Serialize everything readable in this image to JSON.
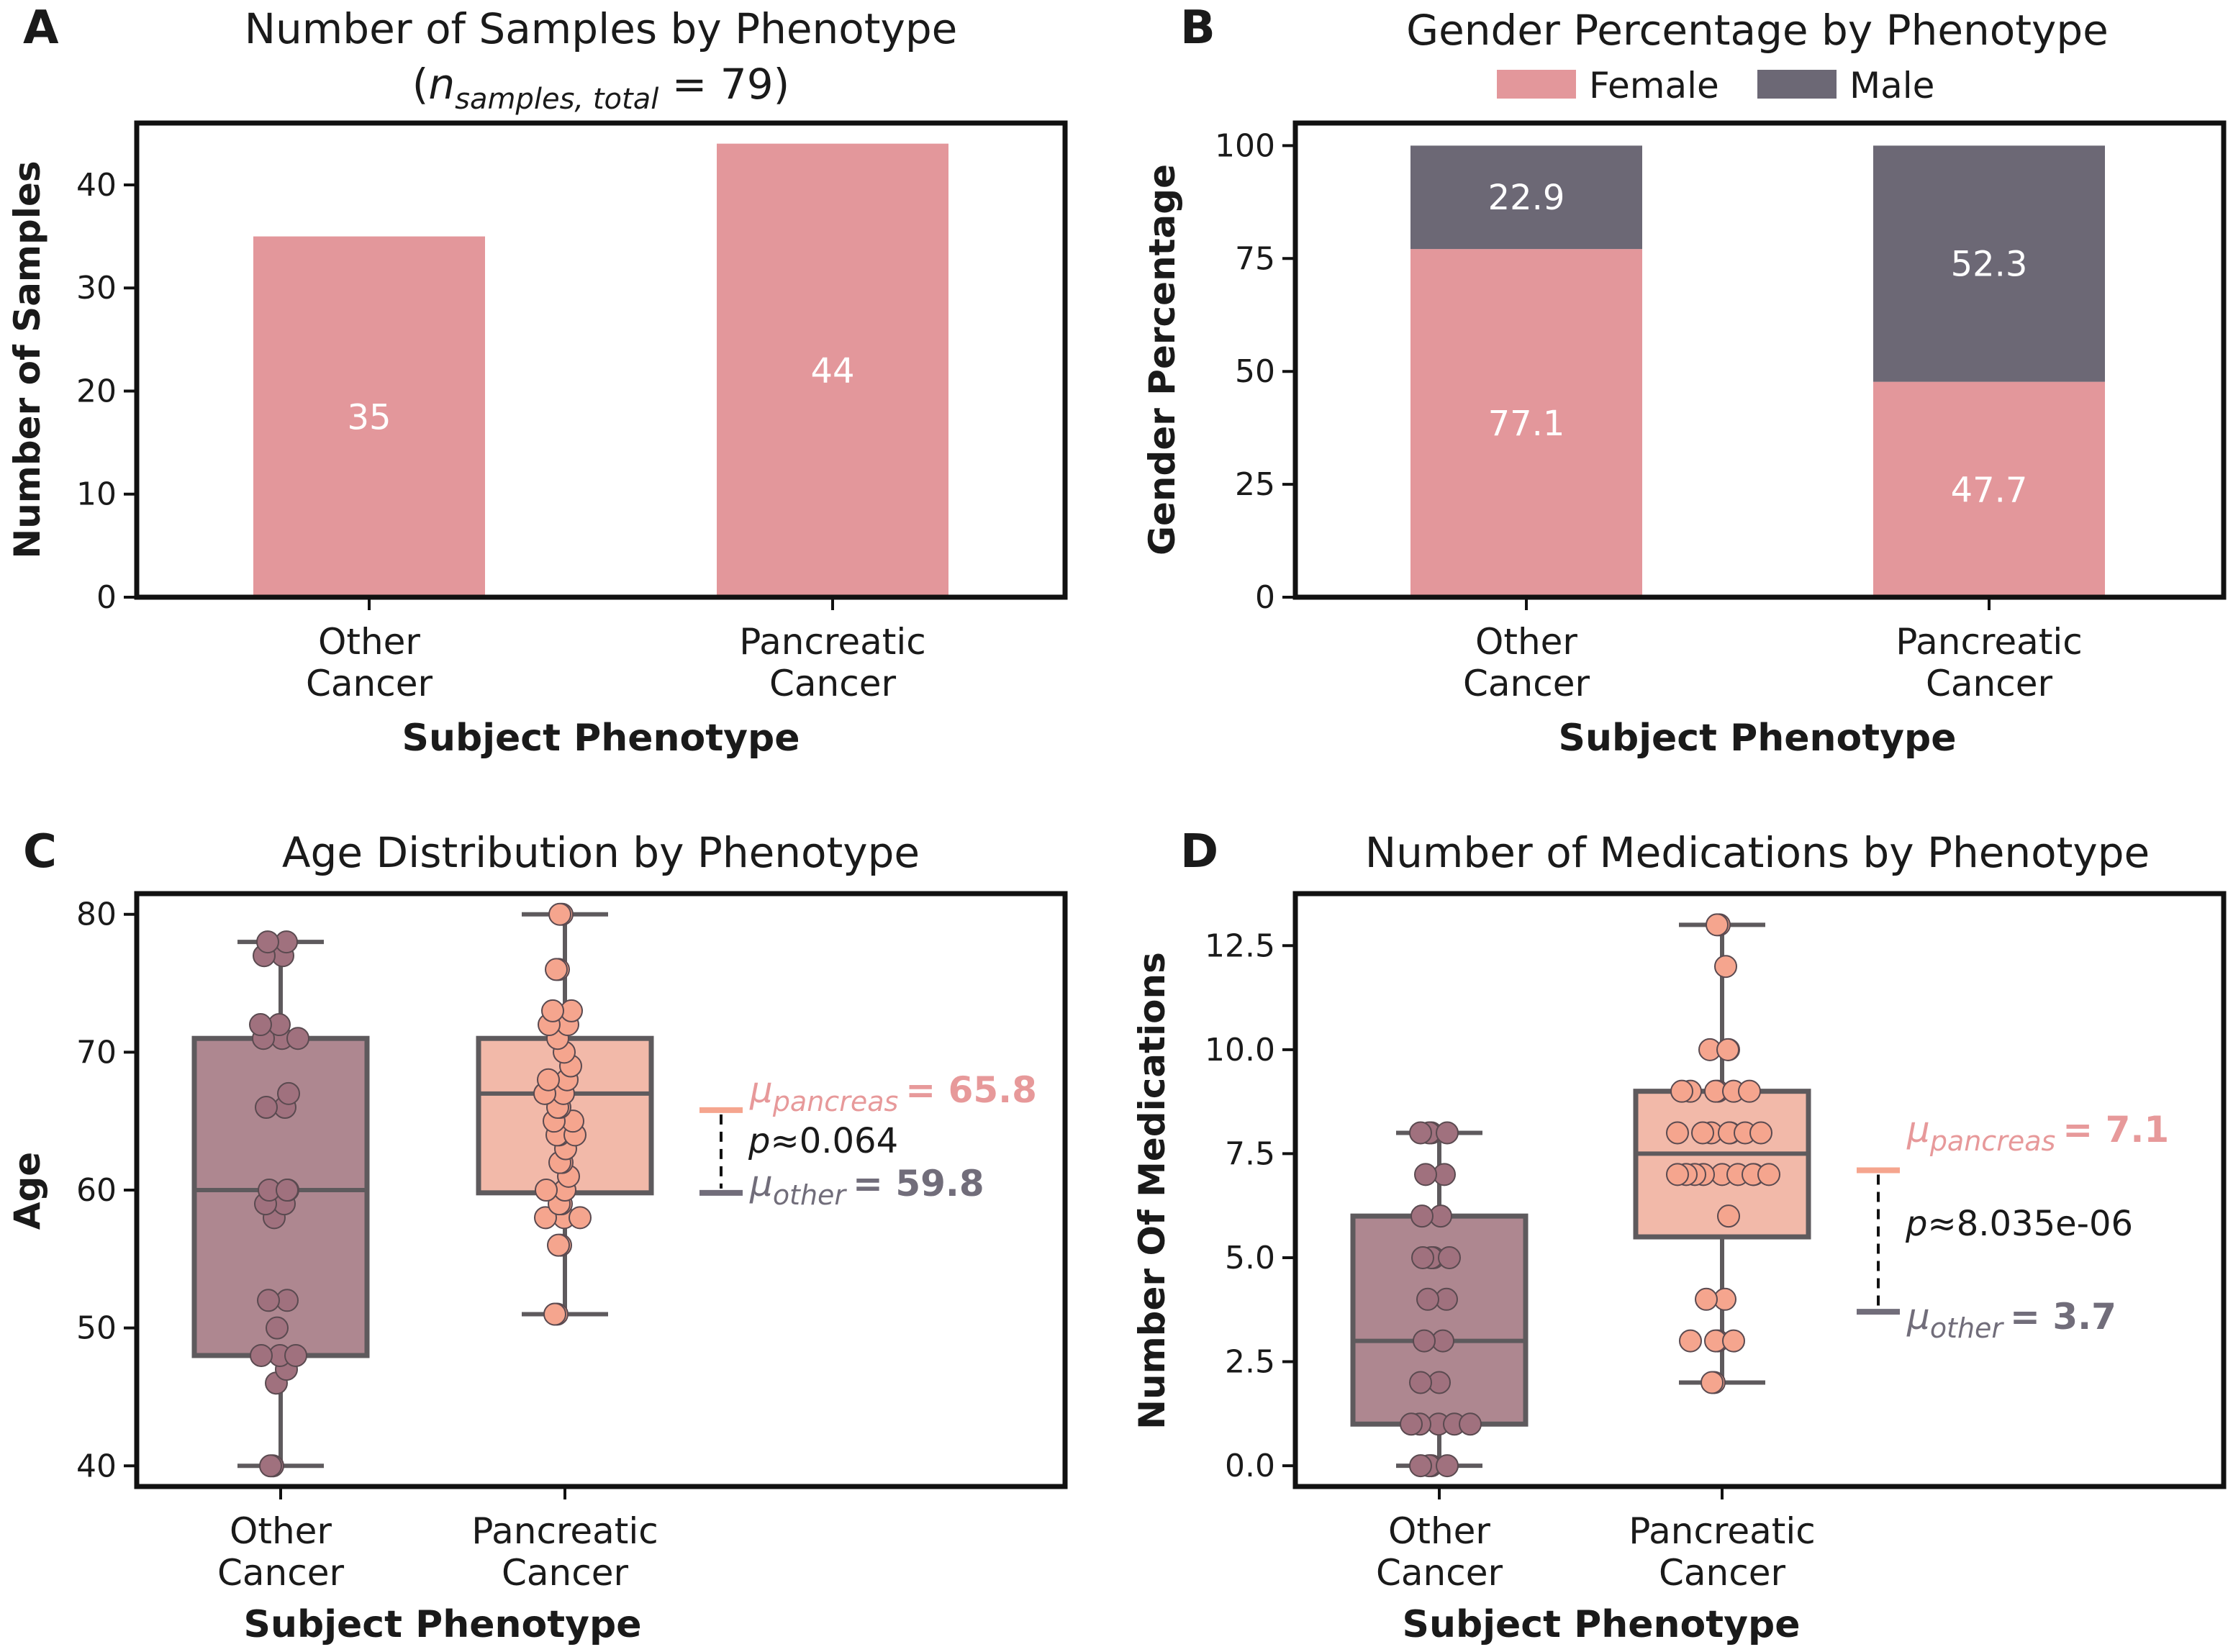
{
  "colors": {
    "female": "#e3979b",
    "male": "#6c6875",
    "other_box": "#ae8790",
    "other_point": "#a0717e",
    "pancreas_box": "#f2b9a9",
    "pancreas_point": "#f5a58e",
    "box_edge": "#5e5a5d",
    "mu_pancreas": "#e7999a",
    "mu_other": "#716d7a"
  },
  "panels": {
    "A": {
      "letter": "A",
      "title": "Number of Samples by Phenotype",
      "subtitle_prefix": "(",
      "subtitle_n": "n",
      "subtitle_sub": "samples, total",
      "subtitle_rest": " = 79)",
      "xlabel": "Subject Phenotype",
      "ylabel": "Number of Samples"
    },
    "B": {
      "letter": "B",
      "title": "Gender Percentage by Phenotype",
      "xlabel": "Subject Phenotype",
      "ylabel": "Gender Percentage",
      "legend": [
        "Female",
        "Male"
      ]
    },
    "C": {
      "letter": "C",
      "title": "Age Distribution by Phenotype",
      "xlabel": "Subject Phenotype",
      "ylabel": "Age",
      "mu_pancreas_sub": "pancreas",
      "mu_pancreas_val": "= 65.8",
      "mu_other_sub": "other",
      "mu_other_val": "= 59.8",
      "p_text": "≈0.064"
    },
    "D": {
      "letter": "D",
      "title": "Number of Medications by Phenotype",
      "xlabel": "Subject Phenotype",
      "ylabel": "Number Of Medications",
      "mu_pancreas_sub": "pancreas",
      "mu_pancreas_val": "= 7.1",
      "mu_other_sub": "other",
      "mu_other_val": "= 3.7",
      "p_text": "≈8.035e-06"
    }
  },
  "chart_data": [
    {
      "type": "bar",
      "title": "Number of Samples by Phenotype (n_samples,total = 79)",
      "categories": [
        [
          "Other",
          "Cancer"
        ],
        [
          "Pancreatic",
          "Cancer"
        ]
      ],
      "values": [
        35,
        44
      ],
      "value_labels": [
        "35",
        "44"
      ],
      "xlabel": "Subject Phenotype",
      "ylabel": "Number of Samples",
      "ylim": [
        0,
        46
      ],
      "yticks": [
        0,
        10,
        20,
        30,
        40
      ],
      "ytick_labels": [
        "0",
        "10",
        "20",
        "30",
        "40"
      ]
    },
    {
      "type": "bar",
      "stacked": true,
      "title": "Gender Percentage by Phenotype",
      "categories": [
        [
          "Other",
          "Cancer"
        ],
        [
          "Pancreatic",
          "Cancer"
        ]
      ],
      "series": [
        {
          "name": "Female",
          "values": [
            77.1,
            47.7
          ],
          "labels": [
            "77.1",
            "47.7"
          ]
        },
        {
          "name": "Male",
          "values": [
            22.9,
            52.3
          ],
          "labels": [
            "22.9",
            "52.3"
          ]
        }
      ],
      "legend_position": "top-center",
      "xlabel": "Subject Phenotype",
      "ylabel": "Gender Percentage",
      "ylim": [
        0,
        105
      ],
      "yticks": [
        0,
        25,
        50,
        75,
        100
      ],
      "ytick_labels": [
        "0",
        "25",
        "50",
        "75",
        "100"
      ]
    },
    {
      "type": "box",
      "title": "Age Distribution by Phenotype",
      "categories": [
        [
          "Other",
          "Cancer"
        ],
        [
          "Pancreatic",
          "Cancer"
        ]
      ],
      "boxes": [
        {
          "name": "Other Cancer",
          "whisker_low": 40,
          "q1": 48,
          "median": 60,
          "q3": 71,
          "whisker_high": 78,
          "points": [
            40,
            40,
            46,
            47,
            48,
            48,
            48,
            50,
            52,
            52,
            58,
            59,
            59,
            60,
            60,
            60,
            66,
            66,
            67,
            71,
            71,
            71,
            72,
            72,
            77,
            77,
            78,
            78
          ]
        },
        {
          "name": "Pancreatic Cancer",
          "whisker_low": 51,
          "q1": 59.8,
          "median": 67,
          "q3": 71,
          "whisker_high": 80,
          "points": [
            51,
            51,
            56,
            56,
            58,
            58,
            58,
            59,
            59,
            60,
            60,
            61,
            62,
            62,
            63,
            64,
            64,
            64,
            65,
            65,
            66,
            66,
            67,
            67,
            68,
            68,
            69,
            70,
            71,
            72,
            72,
            73,
            73,
            76,
            76,
            80,
            80
          ]
        }
      ],
      "annotation": {
        "mu_pancreas": 65.8,
        "mu_other": 59.8,
        "p": 0.064
      },
      "xlabel": "Subject Phenotype",
      "ylabel": "Age",
      "ylim": [
        38.5,
        81.5
      ],
      "yticks": [
        40,
        50,
        60,
        70,
        80
      ],
      "ytick_labels": [
        "40",
        "50",
        "60",
        "70",
        "80"
      ]
    },
    {
      "type": "box",
      "title": "Number of Medications by Phenotype",
      "categories": [
        [
          "Other",
          "Cancer"
        ],
        [
          "Pancreatic",
          "Cancer"
        ]
      ],
      "boxes": [
        {
          "name": "Other Cancer",
          "whisker_low": 0,
          "q1": 1,
          "median": 3,
          "q3": 6,
          "whisker_high": 8,
          "points": [
            0,
            0,
            0,
            0,
            1,
            1,
            1,
            1,
            1,
            2,
            2,
            3,
            3,
            4,
            4,
            5,
            5,
            5,
            5,
            6,
            6,
            7,
            7,
            8,
            8,
            8,
            8
          ]
        },
        {
          "name": "Pancreatic Cancer",
          "whisker_low": 2,
          "q1": 5.5,
          "median": 7.5,
          "q3": 9,
          "whisker_high": 13,
          "points": [
            2,
            2,
            3,
            3,
            3,
            3,
            4,
            4,
            6,
            7,
            7,
            7,
            7,
            7,
            7,
            7,
            7,
            7,
            8,
            8,
            8,
            8,
            8,
            8,
            8,
            9,
            9,
            9,
            9,
            9,
            9,
            10,
            10,
            10,
            12,
            13,
            13
          ]
        }
      ],
      "annotation": {
        "mu_pancreas": 7.1,
        "mu_other": 3.7,
        "p": 8.035e-06
      },
      "xlabel": "Subject Phenotype",
      "ylabel": "Number Of Medications",
      "ylim": [
        -0.5,
        13.75
      ],
      "yticks": [
        0,
        2.5,
        5,
        7.5,
        10,
        12.5
      ],
      "ytick_labels": [
        "0.0",
        "2.5",
        "5.0",
        "7.5",
        "10.0",
        "12.5"
      ]
    }
  ]
}
